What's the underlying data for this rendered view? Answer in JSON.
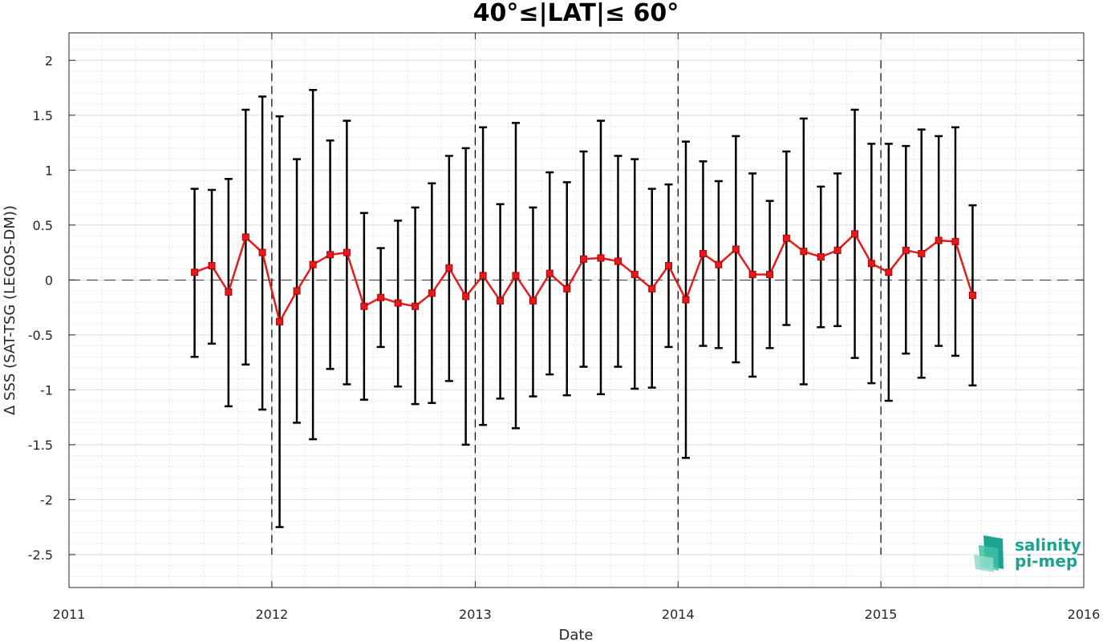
{
  "chart_data": {
    "type": "line",
    "title": "40°≤|LAT|≤ 60°",
    "xlabel": "Date",
    "ylabel": "Δ SSS (SAT-TSG (LEGOS-DM))",
    "xlim": [
      "2011-01-01",
      "2016-01-01"
    ],
    "ylim": [
      -2.8,
      2.25
    ],
    "x_ticks": [
      "2011",
      "2012",
      "2013",
      "2014",
      "2015",
      "2016"
    ],
    "y_ticks": [
      2,
      1.5,
      1,
      0.5,
      0,
      -0.5,
      -1,
      -1.5,
      -2,
      -2.5
    ],
    "y_tick_labels": [
      "2",
      "1.5",
      "1",
      "0.5",
      "0",
      "-0.5",
      "-1",
      "-1.5",
      "-2",
      "-2.5"
    ],
    "grid": true,
    "minor_grid": true,
    "year_boundary_lines": [
      "2012-01-01",
      "2013-01-01",
      "2014-01-01",
      "2015-01-01"
    ],
    "zero_line": 0,
    "series": [
      {
        "color": "#e41a1c",
        "marker": "square",
        "points": [
          {
            "x": "2011-08-15",
            "y": 0.07,
            "lower": -0.7,
            "upper": 0.83
          },
          {
            "x": "2011-09-15",
            "y": 0.13,
            "lower": -0.58,
            "upper": 0.82
          },
          {
            "x": "2011-10-15",
            "y": -0.11,
            "lower": -1.15,
            "upper": 0.92
          },
          {
            "x": "2011-11-15",
            "y": 0.39,
            "lower": -0.77,
            "upper": 1.55
          },
          {
            "x": "2011-12-15",
            "y": 0.25,
            "lower": -1.18,
            "upper": 1.67
          },
          {
            "x": "2012-01-15",
            "y": -0.38,
            "lower": -2.25,
            "upper": 1.49
          },
          {
            "x": "2012-02-15",
            "y": -0.1,
            "lower": -1.3,
            "upper": 1.1
          },
          {
            "x": "2012-03-15",
            "y": 0.14,
            "lower": -1.45,
            "upper": 1.73
          },
          {
            "x": "2012-04-15",
            "y": 0.23,
            "lower": -0.81,
            "upper": 1.27
          },
          {
            "x": "2012-05-15",
            "y": 0.25,
            "lower": -0.95,
            "upper": 1.45
          },
          {
            "x": "2012-06-15",
            "y": -0.24,
            "lower": -1.09,
            "upper": 0.61
          },
          {
            "x": "2012-07-15",
            "y": -0.16,
            "lower": -0.61,
            "upper": 0.29
          },
          {
            "x": "2012-08-15",
            "y": -0.21,
            "lower": -0.97,
            "upper": 0.54
          },
          {
            "x": "2012-09-15",
            "y": -0.24,
            "lower": -1.13,
            "upper": 0.66
          },
          {
            "x": "2012-10-15",
            "y": -0.12,
            "lower": -1.12,
            "upper": 0.88
          },
          {
            "x": "2012-11-15",
            "y": 0.11,
            "lower": -0.92,
            "upper": 1.13
          },
          {
            "x": "2012-12-15",
            "y": -0.15,
            "lower": -1.5,
            "upper": 1.2
          },
          {
            "x": "2013-01-15",
            "y": 0.04,
            "lower": -1.32,
            "upper": 1.39
          },
          {
            "x": "2013-02-15",
            "y": -0.19,
            "lower": -1.08,
            "upper": 0.69
          },
          {
            "x": "2013-03-15",
            "y": 0.04,
            "lower": -1.35,
            "upper": 1.43
          },
          {
            "x": "2013-04-15",
            "y": -0.19,
            "lower": -1.06,
            "upper": 0.66
          },
          {
            "x": "2013-05-15",
            "y": 0.06,
            "lower": -0.86,
            "upper": 0.98
          },
          {
            "x": "2013-06-15",
            "y": -0.08,
            "lower": -1.05,
            "upper": 0.89
          },
          {
            "x": "2013-07-15",
            "y": 0.19,
            "lower": -0.79,
            "upper": 1.17
          },
          {
            "x": "2013-08-15",
            "y": 0.2,
            "lower": -1.04,
            "upper": 1.45
          },
          {
            "x": "2013-09-15",
            "y": 0.17,
            "lower": -0.79,
            "upper": 1.13
          },
          {
            "x": "2013-10-15",
            "y": 0.05,
            "lower": -0.99,
            "upper": 1.1
          },
          {
            "x": "2013-11-15",
            "y": -0.08,
            "lower": -0.98,
            "upper": 0.83
          },
          {
            "x": "2013-12-15",
            "y": 0.13,
            "lower": -0.61,
            "upper": 0.87
          },
          {
            "x": "2014-01-15",
            "y": -0.18,
            "lower": -1.62,
            "upper": 1.26
          },
          {
            "x": "2014-02-15",
            "y": 0.24,
            "lower": -0.6,
            "upper": 1.08
          },
          {
            "x": "2014-03-15",
            "y": 0.14,
            "lower": -0.62,
            "upper": 0.9
          },
          {
            "x": "2014-04-15",
            "y": 0.28,
            "lower": -0.75,
            "upper": 1.31
          },
          {
            "x": "2014-05-15",
            "y": 0.05,
            "lower": -0.88,
            "upper": 0.97
          },
          {
            "x": "2014-06-15",
            "y": 0.05,
            "lower": -0.62,
            "upper": 0.72
          },
          {
            "x": "2014-07-15",
            "y": 0.38,
            "lower": -0.41,
            "upper": 1.17
          },
          {
            "x": "2014-08-15",
            "y": 0.26,
            "lower": -0.95,
            "upper": 1.47
          },
          {
            "x": "2014-09-15",
            "y": 0.21,
            "lower": -0.43,
            "upper": 0.85
          },
          {
            "x": "2014-10-15",
            "y": 0.27,
            "lower": -0.42,
            "upper": 0.97
          },
          {
            "x": "2014-11-15",
            "y": 0.42,
            "lower": -0.71,
            "upper": 1.55
          },
          {
            "x": "2014-12-15",
            "y": 0.15,
            "lower": -0.94,
            "upper": 1.24
          },
          {
            "x": "2015-01-15",
            "y": 0.07,
            "lower": -1.1,
            "upper": 1.24
          },
          {
            "x": "2015-02-15",
            "y": 0.27,
            "lower": -0.67,
            "upper": 1.22
          },
          {
            "x": "2015-03-15",
            "y": 0.24,
            "lower": -0.89,
            "upper": 1.37
          },
          {
            "x": "2015-04-15",
            "y": 0.36,
            "lower": -0.6,
            "upper": 1.31
          },
          {
            "x": "2015-05-15",
            "y": 0.35,
            "lower": -0.69,
            "upper": 1.39
          },
          {
            "x": "2015-06-15",
            "y": -0.14,
            "lower": -0.96,
            "upper": 0.68
          }
        ]
      }
    ]
  },
  "logo": {
    "line1": "salinity",
    "line2": "pi-mep",
    "color": "#1aa38f"
  }
}
